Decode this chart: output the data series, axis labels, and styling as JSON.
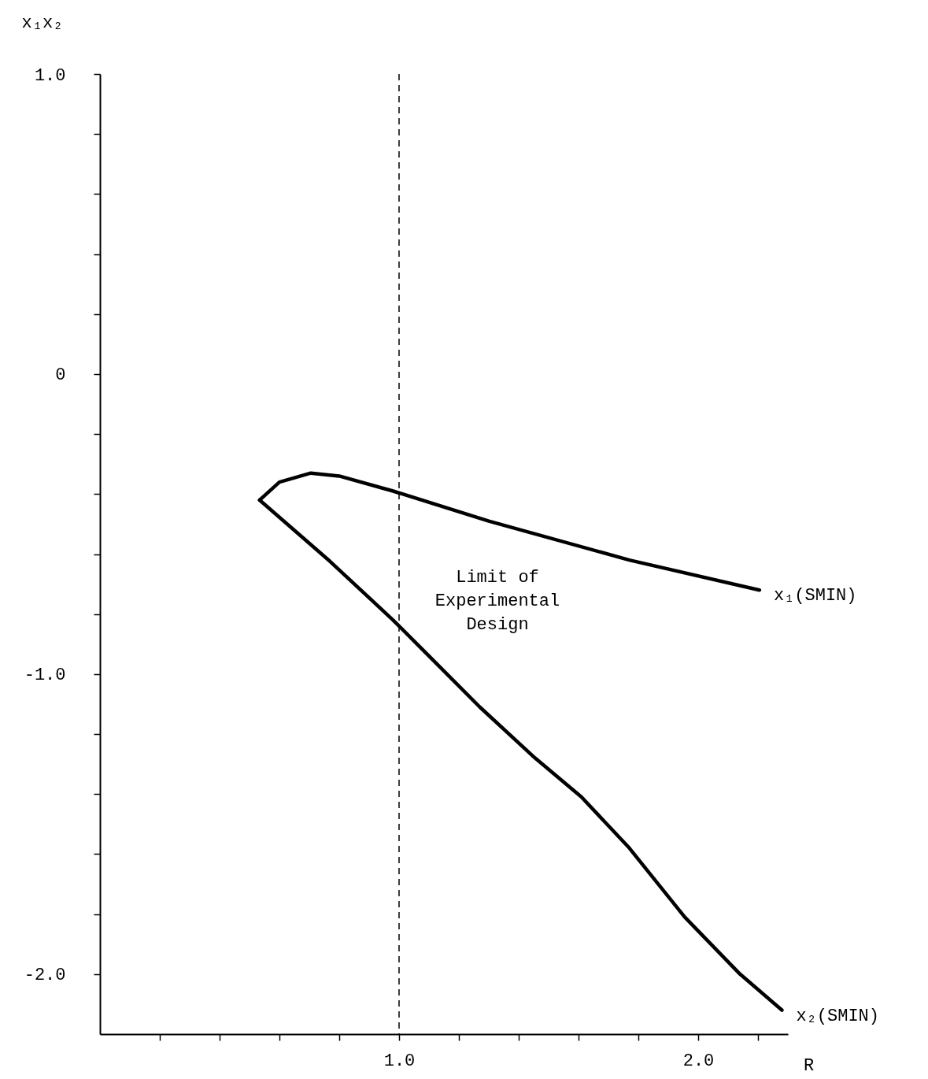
{
  "chart_data": {
    "type": "line",
    "xlabel": "R",
    "ylabel": "x₁x₂",
    "xlim": [
      0,
      2.3
    ],
    "ylim": [
      -2.2,
      1.0
    ],
    "xticks": [
      {
        "value": 0.2,
        "label": null
      },
      {
        "value": 0.4,
        "label": null
      },
      {
        "value": 0.6,
        "label": null
      },
      {
        "value": 0.8,
        "label": null
      },
      {
        "value": 1.0,
        "label": "1.0"
      },
      {
        "value": 1.2,
        "label": null
      },
      {
        "value": 1.4,
        "label": null
      },
      {
        "value": 1.6,
        "label": null
      },
      {
        "value": 1.8,
        "label": null
      },
      {
        "value": 2.0,
        "label": "2.0"
      },
      {
        "value": 2.2,
        "label": null
      }
    ],
    "yticks": [
      {
        "value": 1.0,
        "label": "1.0"
      },
      {
        "value": 0.8,
        "label": null
      },
      {
        "value": 0.6,
        "label": null
      },
      {
        "value": 0.4,
        "label": null
      },
      {
        "value": 0.2,
        "label": null
      },
      0,
      {
        "value": -0.2,
        "label": null
      },
      {
        "value": -0.4,
        "label": null
      },
      {
        "value": -0.6,
        "label": null
      },
      {
        "value": -0.8,
        "label": null
      },
      {
        "value": -1.0,
        "label": "-1.0"
      },
      {
        "value": -1.2,
        "label": null
      },
      {
        "value": -1.4,
        "label": null
      },
      {
        "value": -1.6,
        "label": null
      },
      {
        "value": -1.8,
        "label": null
      },
      {
        "value": -2.0,
        "label": "-2.0"
      }
    ],
    "grid": false,
    "legend": false,
    "marker": "none",
    "line_style": "solid",
    "series": [
      {
        "name": "x₁(SMIN)",
        "color": "#000000",
        "x": [
          0.534,
          0.6,
          0.705,
          0.8,
          0.98,
          1.3,
          1.77,
          2.205
        ],
        "values": [
          -0.42,
          -0.36,
          -0.33,
          -0.34,
          -0.39,
          -0.49,
          -0.62,
          -0.72
        ]
      },
      {
        "name": "x₂(SMIN)",
        "color": "#000000",
        "x": [
          0.534,
          0.77,
          0.98,
          1.09,
          1.27,
          1.455,
          1.61,
          1.77,
          1.955,
          2.14,
          2.28
        ],
        "values": [
          -0.42,
          -0.625,
          -0.82,
          -0.93,
          -1.11,
          -1.28,
          -1.41,
          -1.58,
          -1.81,
          -2.0,
          -2.12
        ]
      }
    ],
    "ref_lines": [
      {
        "axis": "x",
        "value": 1.0,
        "label": "Limit of\nExperimental\nDesign",
        "color": "#000000",
        "line_style": "dashed"
      }
    ]
  }
}
